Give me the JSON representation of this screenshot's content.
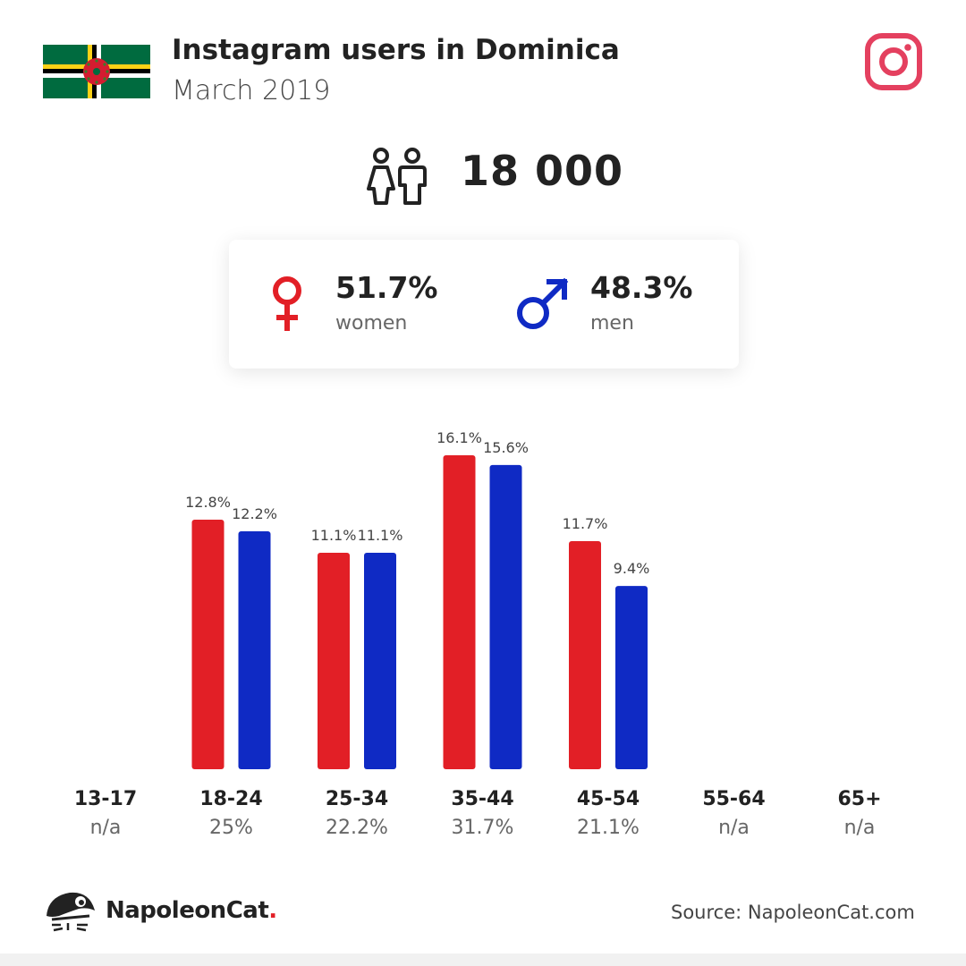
{
  "header": {
    "title": "Instagram users in Dominica",
    "subtitle": "March 2019"
  },
  "total_users": "18 000",
  "gender": {
    "women_pct": "51.7%",
    "women_label": "women",
    "men_pct": "48.3%",
    "men_label": "men"
  },
  "icons": {
    "flag": "dominica-flag-icon",
    "platform": "instagram-icon",
    "users": "people-icon",
    "female": "female-symbol-icon",
    "male": "male-symbol-icon",
    "logo": "napoleoncat-logo-icon"
  },
  "colors": {
    "women": "#e21f26",
    "men": "#0f2ac4",
    "instagram": "#e4405f"
  },
  "chart_data": {
    "type": "bar",
    "categories": [
      "13-17",
      "18-24",
      "25-34",
      "35-44",
      "45-54",
      "55-64",
      "65+"
    ],
    "totals": [
      "n/a",
      "25%",
      "22.2%",
      "31.7%",
      "21.1%",
      "n/a",
      "n/a"
    ],
    "series": [
      {
        "name": "women",
        "values": [
          null,
          12.8,
          11.1,
          16.1,
          11.7,
          null,
          null
        ],
        "labels": [
          "",
          "12.8%",
          "11.1%",
          "16.1%",
          "11.7%",
          "",
          ""
        ]
      },
      {
        "name": "men",
        "values": [
          null,
          12.2,
          11.1,
          15.6,
          9.4,
          null,
          null
        ],
        "labels": [
          "",
          "12.2%",
          "11.1%",
          "15.6%",
          "9.4%",
          "",
          ""
        ]
      }
    ]
  },
  "footer": {
    "brand": "NapoleonCat",
    "brand_dot": ".",
    "source": "Source: NapoleonCat.com"
  }
}
